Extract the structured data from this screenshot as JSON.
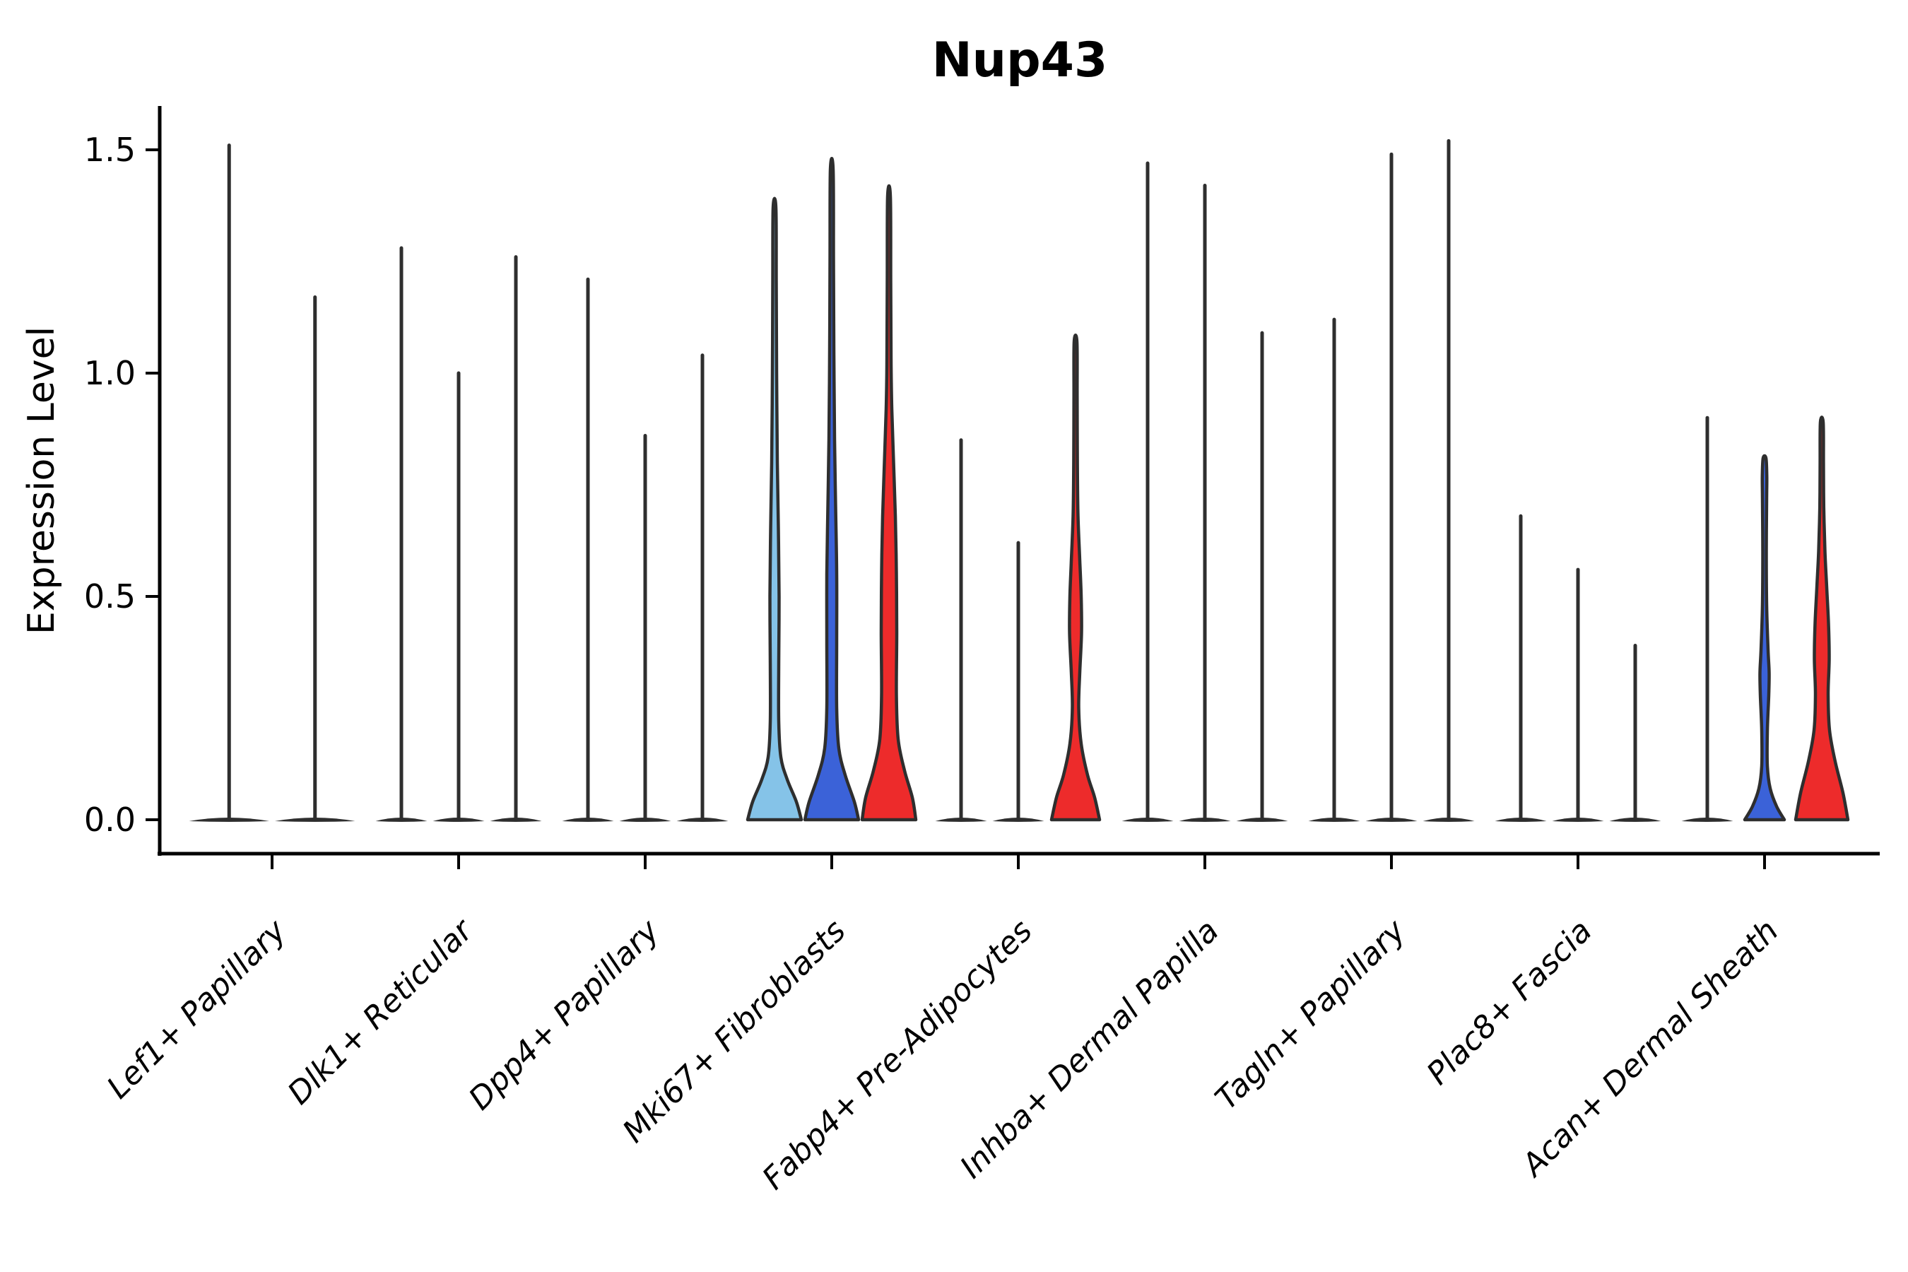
{
  "chart_data": {
    "type": "violin",
    "title": "Nup43",
    "xlabel": "",
    "ylabel": "Expression Level",
    "ylim": [
      0,
      1.55
    ],
    "grid": false,
    "legend": "none",
    "ytick_labels": [
      "0.0",
      "0.5",
      "1.0",
      "1.5"
    ],
    "ytick_values": [
      0.0,
      0.5,
      1.0,
      1.5
    ],
    "categories": [
      "Lef1+ Papillary",
      "Dlk1+ Reticular",
      "Dpp4+ Papillary",
      "Mki67+ Fibroblasts",
      "Fabp4+ Pre-Adipocytes",
      "Inhba+ Dermal Papilla",
      "Tagln+ Papillary",
      "Plac8+ Fascia",
      "Acan+ Dermal Sheath"
    ],
    "colors": {
      "light_blue": "#85C3E8",
      "blue": "#3B62D8",
      "red": "#ED2B2B",
      "outline": "#2E2E2E",
      "axis": "#000000"
    },
    "groups": [
      {
        "category": "Lef1+ Papillary",
        "violins": [
          {
            "max": 1.51,
            "fill": null
          },
          {
            "max": 1.17,
            "fill": null
          }
        ]
      },
      {
        "category": "Dlk1+ Reticular",
        "violins": [
          {
            "max": 1.28,
            "fill": null
          },
          {
            "max": 1.0,
            "fill": null
          },
          {
            "max": 1.26,
            "fill": null
          }
        ]
      },
      {
        "category": "Dpp4+ Papillary",
        "violins": [
          {
            "max": 1.21,
            "fill": null
          },
          {
            "max": 0.86,
            "fill": null
          },
          {
            "max": 1.04,
            "fill": null
          }
        ]
      },
      {
        "category": "Mki67+ Fibroblasts",
        "violins": [
          {
            "max": 1.37,
            "fill": "light_blue",
            "profile": [
              [
                0,
                38
              ],
              [
                0.04,
                31
              ],
              [
                0.09,
                18
              ],
              [
                0.14,
                9
              ],
              [
                0.22,
                6
              ],
              [
                0.35,
                6
              ],
              [
                0.5,
                6.5
              ],
              [
                0.65,
                5.5
              ],
              [
                0.8,
                4
              ],
              [
                1.0,
                3
              ],
              [
                1.2,
                2.5
              ],
              [
                1.37,
                2
              ]
            ]
          },
          {
            "max": 1.455,
            "fill": "blue",
            "profile": [
              [
                0,
                38
              ],
              [
                0.04,
                32
              ],
              [
                0.1,
                19
              ],
              [
                0.16,
                10
              ],
              [
                0.25,
                7
              ],
              [
                0.4,
                7
              ],
              [
                0.55,
                7
              ],
              [
                0.7,
                5.5
              ],
              [
                0.85,
                4
              ],
              [
                1.05,
                3
              ],
              [
                1.25,
                2.5
              ],
              [
                1.455,
                2
              ]
            ]
          },
          {
            "max": 1.395,
            "fill": "red",
            "profile": [
              [
                0,
                38
              ],
              [
                0.05,
                33
              ],
              [
                0.11,
                22
              ],
              [
                0.18,
                13
              ],
              [
                0.28,
                10.5
              ],
              [
                0.42,
                11
              ],
              [
                0.55,
                10.5
              ],
              [
                0.68,
                9
              ],
              [
                0.8,
                6.5
              ],
              [
                0.92,
                4
              ],
              [
                1.02,
                3
              ],
              [
                1.2,
                2.5
              ],
              [
                1.395,
                2
              ]
            ]
          }
        ]
      },
      {
        "category": "Fabp4+ Pre-Adipocytes",
        "violins": [
          {
            "max": 0.85,
            "fill": null
          },
          {
            "max": 0.62,
            "fill": null
          },
          {
            "max": 1.07,
            "fill": "red",
            "profile": [
              [
                0,
                34
              ],
              [
                0.05,
                27
              ],
              [
                0.1,
                17
              ],
              [
                0.17,
                8
              ],
              [
                0.25,
                4.5
              ],
              [
                0.33,
                6
              ],
              [
                0.42,
                8.5
              ],
              [
                0.5,
                8
              ],
              [
                0.58,
                6
              ],
              [
                0.68,
                3.5
              ],
              [
                0.8,
                2.6
              ],
              [
                0.95,
                2.3
              ],
              [
                1.07,
                2
              ]
            ]
          }
        ]
      },
      {
        "category": "Inhba+ Dermal Papilla",
        "violins": [
          {
            "max": 1.47,
            "fill": null
          },
          {
            "max": 1.42,
            "fill": null
          },
          {
            "max": 1.09,
            "fill": null
          }
        ]
      },
      {
        "category": "Tagln+ Papillary",
        "violins": [
          {
            "max": 1.12,
            "fill": null
          },
          {
            "max": 1.49,
            "fill": null
          },
          {
            "max": 1.52,
            "fill": null
          }
        ]
      },
      {
        "category": "Plac8+ Fascia",
        "violins": [
          {
            "max": 0.68,
            "fill": null
          },
          {
            "max": 0.56,
            "fill": null
          },
          {
            "max": 0.39,
            "fill": null
          }
        ]
      },
      {
        "category": "Acan+ Dermal Sheath",
        "violins": [
          {
            "max": 0.9,
            "fill": null
          },
          {
            "max": 0.81,
            "fill": "blue",
            "profile": [
              [
                0,
                28
              ],
              [
                0.03,
                17
              ],
              [
                0.07,
                8
              ],
              [
                0.12,
                4
              ],
              [
                0.2,
                4
              ],
              [
                0.28,
                6
              ],
              [
                0.33,
                6.5
              ],
              [
                0.38,
                5
              ],
              [
                0.48,
                3
              ],
              [
                0.6,
                2.5
              ],
              [
                0.72,
                3
              ],
              [
                0.77,
                3.2
              ],
              [
                0.81,
                2
              ]
            ]
          },
          {
            "max": 0.89,
            "fill": "red",
            "profile": [
              [
                0,
                37
              ],
              [
                0.06,
                30
              ],
              [
                0.13,
                19
              ],
              [
                0.2,
                11
              ],
              [
                0.28,
                9
              ],
              [
                0.36,
                10.5
              ],
              [
                0.44,
                9.5
              ],
              [
                0.52,
                7
              ],
              [
                0.6,
                4.5
              ],
              [
                0.7,
                2.8
              ],
              [
                0.8,
                2.4
              ],
              [
                0.89,
                2
              ]
            ]
          }
        ]
      }
    ]
  }
}
